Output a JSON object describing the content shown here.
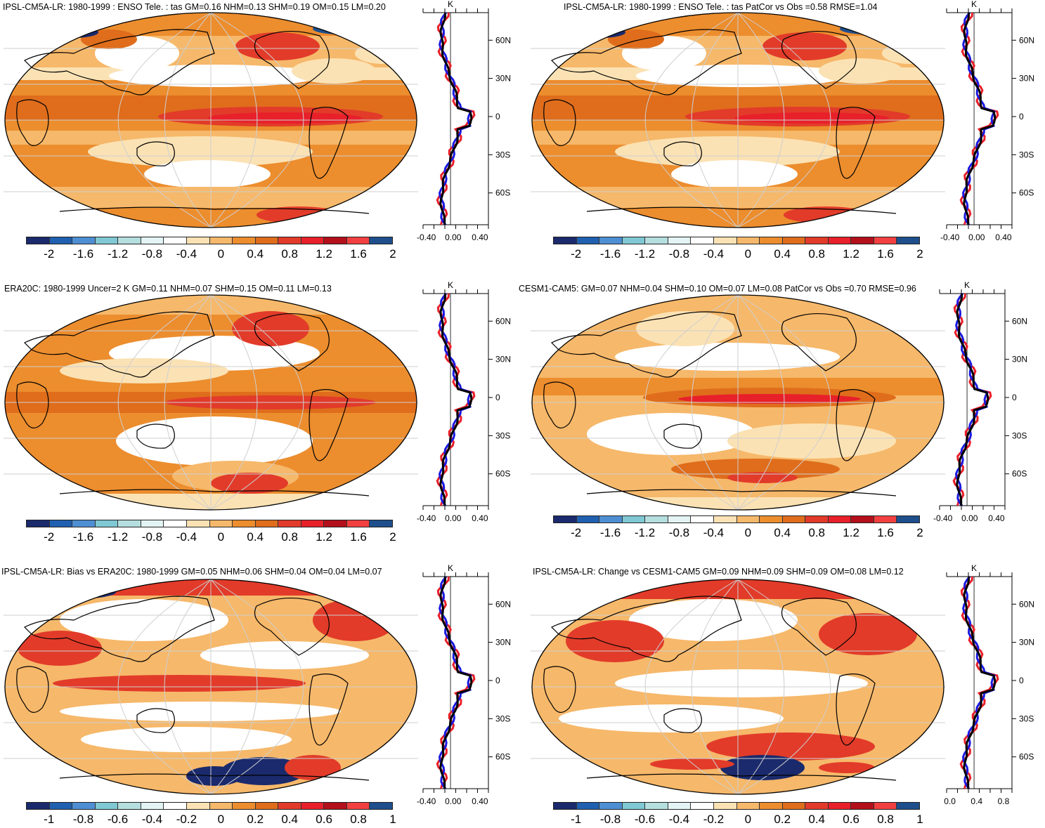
{
  "colors": [
    "#1a2a6c",
    "#2060b0",
    "#4e8fd3",
    "#7fc8d4",
    "#b5dedf",
    "#e4f4f4",
    "#ffffff",
    "#fbe2b4",
    "#f6b86a",
    "#ec8d2e",
    "#df6d1c",
    "#e23b2a",
    "#e8202a",
    "#b3101b",
    "#f24040",
    "#1e4f8c"
  ],
  "panels": [
    {
      "title": "IPSL-CM5A-LR: 1980-1999 : ENSO Tele. : tas GM=0.16 NHM=0.13 SHM=0.19 OM=0.15 LM=0.20",
      "cb_labels": [
        "-2",
        "-1.6",
        "-1.2",
        "-0.8",
        "-0.4",
        "0",
        "0.4",
        "0.8",
        "1.2",
        "1.6",
        "2"
      ],
      "zonal_ticks": [
        "-0.40",
        "0.00",
        "0.40"
      ],
      "zonal_unit": "K",
      "lat_labels": [
        "60N",
        "30N",
        "0",
        "30S",
        "60S"
      ]
    },
    {
      "title": "IPSL-CM5A-LR: 1980-1999 : ENSO Tele. : tas PatCor vs Obs =0.58 RMSE=1.04",
      "cb_labels": [
        "-2",
        "-1.6",
        "-1.2",
        "-0.8",
        "-0.4",
        "0",
        "0.4",
        "0.8",
        "1.2",
        "1.6",
        "2"
      ],
      "zonal_ticks": [
        "-0.40",
        "0.00",
        "0.40"
      ],
      "zonal_unit": "K",
      "lat_labels": [
        "60N",
        "30N",
        "0",
        "30S",
        "60S"
      ]
    },
    {
      "title": "ERA20C: 1980-1999 Uncer=2 K GM=0.11 NHM=0.07 SHM=0.15 OM=0.11 LM=0.13",
      "cb_labels": [
        "-2",
        "-1.6",
        "-1.2",
        "-0.8",
        "-0.4",
        "0",
        "0.4",
        "0.8",
        "1.2",
        "1.6",
        "2"
      ],
      "zonal_ticks": [
        "-0.40",
        "0.00",
        "0.40"
      ],
      "zonal_unit": "K",
      "lat_labels": [
        "60N",
        "30N",
        "0",
        "30S",
        "60S"
      ]
    },
    {
      "title": "CESM1-CAM5: GM=0.07 NHM=0.04 SHM=0.10 OM=0.07 LM=0.08 PatCor vs Obs =0.70 RMSE=0.96",
      "cb_labels": [
        "-2",
        "-1.6",
        "-1.2",
        "-0.8",
        "-0.4",
        "0",
        "0.4",
        "0.8",
        "1.2",
        "1.6",
        "2"
      ],
      "zonal_ticks": [
        "-0.40",
        "0.00",
        "0.40"
      ],
      "zonal_unit": "K",
      "lat_labels": [
        "60N",
        "30N",
        "0",
        "30S",
        "60S"
      ]
    },
    {
      "title": "IPSL-CM5A-LR: Bias vs ERA20C: 1980-1999 GM=0.05 NHM=0.06 SHM=0.04 OM=0.04 LM=0.07",
      "cb_labels": [
        "-1",
        "-0.8",
        "-0.6",
        "-0.4",
        "-0.2",
        "0",
        "0.2",
        "0.4",
        "0.6",
        "0.8",
        "1"
      ],
      "zonal_ticks": [
        "-0.40",
        "0.00",
        "0.40"
      ],
      "zonal_unit": "K",
      "lat_labels": [
        "60N",
        "30N",
        "0",
        "30S",
        "60S"
      ]
    },
    {
      "title": "IPSL-CM5A-LR: Change vs CESM1-CAM5 GM=0.09 NHM=0.09 SHM=0.09 OM=0.08 LM=0.12",
      "cb_labels": [
        "-1",
        "-0.8",
        "-0.6",
        "-0.4",
        "-0.2",
        "0",
        "0.2",
        "0.4",
        "0.6",
        "0.8",
        "1"
      ],
      "zonal_ticks": [
        "0.0",
        "0.4",
        "0.8"
      ],
      "zonal_unit": "K",
      "lat_labels": [
        "60N",
        "30N",
        "0",
        "30S",
        "60S"
      ]
    }
  ]
}
